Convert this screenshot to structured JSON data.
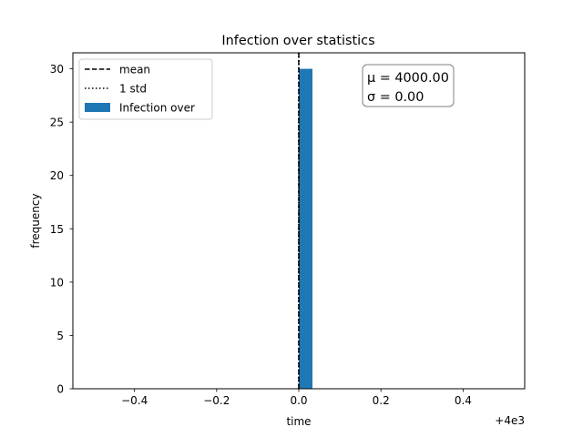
{
  "chart_data": {
    "type": "bar",
    "title": "Infection over statistics",
    "xlabel": "time",
    "ylabel": "frequency",
    "x_offset_label": "+4e3",
    "xlim": [
      -0.55,
      0.55
    ],
    "ylim": [
      0,
      31.5
    ],
    "x_ticks": [
      -0.4,
      -0.2,
      0.0,
      0.2,
      0.4
    ],
    "x_tick_labels": [
      "−0.4",
      "−0.2",
      "0.0",
      "0.2",
      "0.4"
    ],
    "y_ticks": [
      0,
      5,
      10,
      15,
      20,
      25,
      30
    ],
    "y_tick_labels": [
      "0",
      "5",
      "10",
      "15",
      "20",
      "25",
      "30"
    ],
    "bars": [
      {
        "x_start": 0.0,
        "x_end": 0.0333,
        "count": 30
      }
    ],
    "mean_line_x": 0.0,
    "std_lines_x": [
      0.0,
      0.0
    ],
    "bar_color": "#1f77b4",
    "legend": {
      "placement": "upper-left",
      "entries": [
        {
          "label": "mean",
          "style": "dashed"
        },
        {
          "label": "1 std",
          "style": "dotted"
        },
        {
          "label": "Infection over",
          "style": "patch"
        }
      ]
    },
    "annotation": {
      "placement": "upper-right",
      "mu_text": "μ = 4000.00",
      "sigma_text": "σ = 0.00"
    },
    "grid": false
  }
}
